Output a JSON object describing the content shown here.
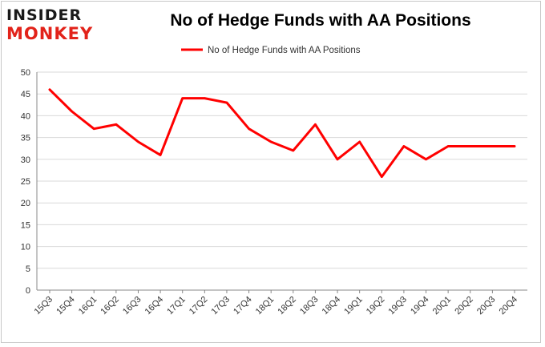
{
  "logo": {
    "line1": "INSIDER",
    "line2": "MONKEY"
  },
  "colors": {
    "series": "#ff0000",
    "grid": "#d9d9d9",
    "axis": "#888888",
    "logo_accent": "#e2231a"
  },
  "chart_data": {
    "type": "line",
    "title": "No of Hedge Funds with AA Positions",
    "xlabel": "",
    "ylabel": "",
    "ylim": [
      0,
      50
    ],
    "yticks": [
      0,
      5,
      10,
      15,
      20,
      25,
      30,
      35,
      40,
      45,
      50
    ],
    "grid": true,
    "legend_position": "top-center",
    "categories": [
      "15Q3",
      "15Q4",
      "16Q1",
      "16Q2",
      "16Q3",
      "16Q4",
      "17Q1",
      "17Q2",
      "17Q3",
      "17Q4",
      "18Q1",
      "18Q2",
      "18Q3",
      "18Q4",
      "19Q1",
      "19Q2",
      "19Q3",
      "19Q4",
      "20Q1",
      "20Q2",
      "20Q3",
      "20Q4"
    ],
    "series": [
      {
        "name": "No of Hedge Funds with AA Positions",
        "values": [
          46,
          41,
          37,
          38,
          34,
          31,
          44,
          44,
          43,
          37,
          34,
          32,
          38,
          30,
          34,
          26,
          33,
          30,
          33,
          33,
          33,
          33
        ]
      }
    ]
  }
}
